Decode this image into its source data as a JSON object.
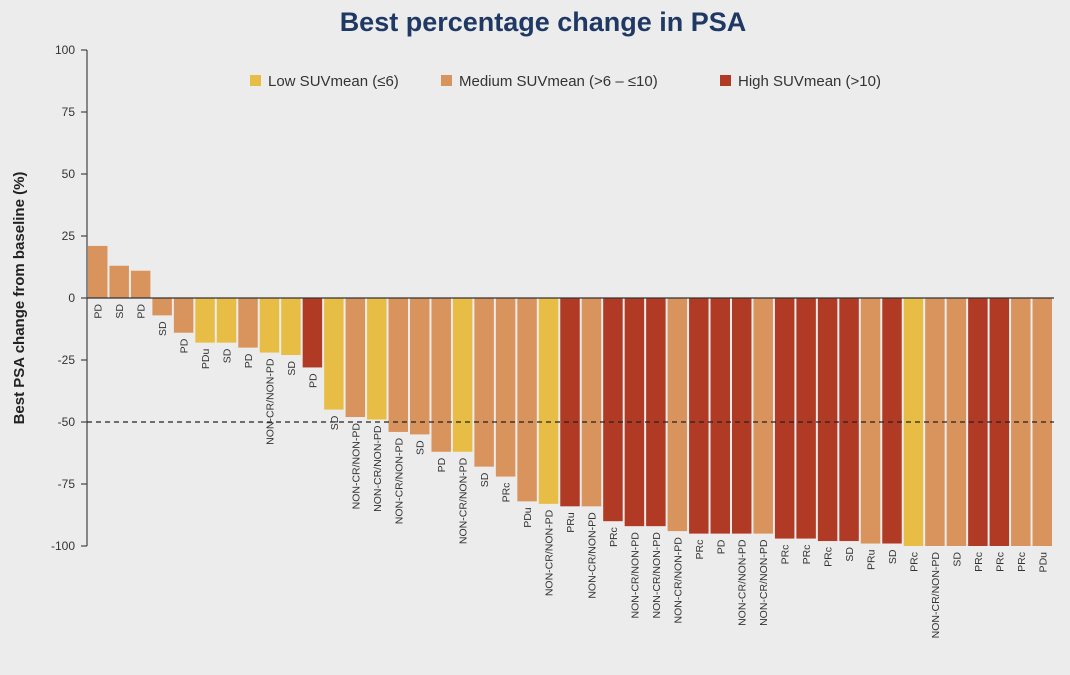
{
  "chart_data": {
    "type": "bar",
    "title": "Best percentage change in PSA",
    "ylabel": "Best PSA change from baseline (%)",
    "xlabel": "",
    "ylim": [
      -100,
      100
    ],
    "yticks": [
      100,
      75,
      50,
      25,
      0,
      -25,
      -50,
      -75,
      -100
    ],
    "reference_line": {
      "y": -50,
      "style": "dashed"
    },
    "grid": false,
    "legend_position": "top-right",
    "legend": [
      {
        "key": "low",
        "label": "Low SUVmean (≤6)",
        "color": "#e8bd45"
      },
      {
        "key": "medium",
        "label": "Medium SUVmean (>6 – ≤10)",
        "color": "#d9935c"
      },
      {
        "key": "high",
        "label": "High SUVmean (>10)",
        "color": "#b03a24"
      }
    ],
    "bars": [
      {
        "label": "PD",
        "value": 21,
        "group": "medium"
      },
      {
        "label": "SD",
        "value": 13,
        "group": "medium"
      },
      {
        "label": "PD",
        "value": 11,
        "group": "medium"
      },
      {
        "label": "SD",
        "value": -7,
        "group": "medium"
      },
      {
        "label": "PD",
        "value": -14,
        "group": "medium"
      },
      {
        "label": "PDu",
        "value": -18,
        "group": "low"
      },
      {
        "label": "SD",
        "value": -18,
        "group": "low"
      },
      {
        "label": "PD",
        "value": -20,
        "group": "medium"
      },
      {
        "label": "NON-CR/NON-PD",
        "value": -22,
        "group": "low"
      },
      {
        "label": "SD",
        "value": -23,
        "group": "low"
      },
      {
        "label": "PD",
        "value": -28,
        "group": "high"
      },
      {
        "label": "SD",
        "value": -45,
        "group": "low"
      },
      {
        "label": "NON-CR/NON-PD",
        "value": -48,
        "group": "medium"
      },
      {
        "label": "NON-CR/NON-PD",
        "value": -49,
        "group": "low"
      },
      {
        "label": "NON-CR/NON-PD",
        "value": -54,
        "group": "medium"
      },
      {
        "label": "SD",
        "value": -55,
        "group": "medium"
      },
      {
        "label": "PD",
        "value": -62,
        "group": "medium"
      },
      {
        "label": "NON-CR/NON-PD",
        "value": -62,
        "group": "low"
      },
      {
        "label": "SD",
        "value": -68,
        "group": "medium"
      },
      {
        "label": "PRc",
        "value": -72,
        "group": "medium"
      },
      {
        "label": "PDu",
        "value": -82,
        "group": "medium"
      },
      {
        "label": "NON-CR/NON-PD",
        "value": -83,
        "group": "low"
      },
      {
        "label": "PRu",
        "value": -84,
        "group": "high"
      },
      {
        "label": "NON-CR/NON-PD",
        "value": -84,
        "group": "medium"
      },
      {
        "label": "PRc",
        "value": -90,
        "group": "high"
      },
      {
        "label": "NON-CR/NON-PD",
        "value": -92,
        "group": "high"
      },
      {
        "label": "NON-CR/NON-PD",
        "value": -92,
        "group": "high"
      },
      {
        "label": "NON-CR/NON-PD",
        "value": -94,
        "group": "medium"
      },
      {
        "label": "PRc",
        "value": -95,
        "group": "high"
      },
      {
        "label": "PD",
        "value": -95,
        "group": "high"
      },
      {
        "label": "NON-CR/NON-PD",
        "value": -95,
        "group": "high"
      },
      {
        "label": "NON-CR/NON-PD",
        "value": -95,
        "group": "medium"
      },
      {
        "label": "PRc",
        "value": -97,
        "group": "high"
      },
      {
        "label": "PRc",
        "value": -97,
        "group": "high"
      },
      {
        "label": "PRc",
        "value": -98,
        "group": "high"
      },
      {
        "label": "SD",
        "value": -98,
        "group": "high"
      },
      {
        "label": "PRu",
        "value": -99,
        "group": "medium"
      },
      {
        "label": "SD",
        "value": -99,
        "group": "high"
      },
      {
        "label": "PRc",
        "value": -100,
        "group": "low"
      },
      {
        "label": "NON-CR/NON-PD",
        "value": -100,
        "group": "medium"
      },
      {
        "label": "SD",
        "value": -100,
        "group": "medium"
      },
      {
        "label": "PRc",
        "value": -100,
        "group": "high"
      },
      {
        "label": "PRc",
        "value": -100,
        "group": "high"
      },
      {
        "label": "PRc",
        "value": -100,
        "group": "medium"
      },
      {
        "label": "PDu",
        "value": -100,
        "group": "medium"
      }
    ]
  }
}
